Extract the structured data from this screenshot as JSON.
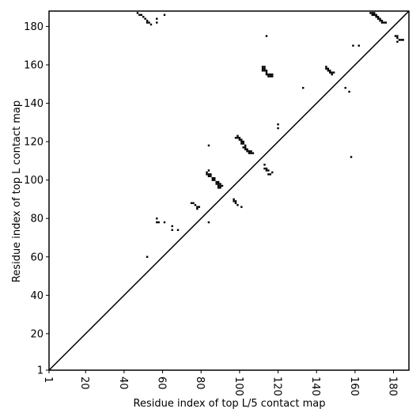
{
  "chart_data": {
    "type": "heatmap",
    "xlabel": "Residue index of top L/5 contact map",
    "ylabel": "Residue index of top L contact map",
    "xlim": [
      1,
      188
    ],
    "ylim": [
      1,
      188
    ],
    "xticks": [
      "1",
      "20",
      "40",
      "60",
      "80",
      "100",
      "120",
      "140",
      "160",
      "180"
    ],
    "yticks": [
      "1",
      "20",
      "40",
      "60",
      "80",
      "100",
      "120",
      "140",
      "160",
      "180"
    ],
    "diagonal": true,
    "colors": {
      "contact": "#000000",
      "background": "#ffffff",
      "frame": "#000000"
    },
    "contacts_upper_left": [
      [
        47,
        187
      ],
      [
        48,
        186
      ],
      [
        49,
        186
      ],
      [
        50,
        185
      ],
      [
        51,
        184
      ],
      [
        52,
        183
      ],
      [
        52,
        182
      ],
      [
        53,
        182
      ],
      [
        54,
        181
      ],
      [
        57,
        184
      ],
      [
        57,
        182
      ],
      [
        61,
        186
      ],
      [
        57,
        80
      ],
      [
        57,
        78
      ],
      [
        58,
        78
      ],
      [
        61,
        78
      ],
      [
        52,
        60
      ],
      [
        65,
        76
      ],
      [
        65,
        74
      ],
      [
        68,
        74
      ],
      [
        84,
        118
      ],
      [
        84,
        78
      ],
      [
        75,
        88
      ],
      [
        76,
        88
      ],
      [
        77,
        87
      ],
      [
        78,
        86
      ],
      [
        78,
        85
      ],
      [
        79,
        86
      ],
      [
        83,
        103
      ],
      [
        83,
        104
      ],
      [
        84,
        105
      ],
      [
        84,
        103
      ],
      [
        84,
        102
      ],
      [
        85,
        103
      ],
      [
        85,
        102
      ],
      [
        86,
        101
      ],
      [
        86,
        100
      ],
      [
        87,
        101
      ],
      [
        87,
        100
      ],
      [
        88,
        99
      ],
      [
        88,
        98
      ],
      [
        89,
        99
      ],
      [
        89,
        98
      ],
      [
        89,
        97
      ],
      [
        89,
        96
      ],
      [
        90,
        98
      ],
      [
        90,
        97
      ],
      [
        90,
        96
      ],
      [
        91,
        97
      ],
      [
        97,
        89
      ],
      [
        97,
        90
      ],
      [
        98,
        89
      ],
      [
        98,
        88
      ],
      [
        99,
        87
      ],
      [
        101,
        86
      ],
      [
        98,
        122
      ],
      [
        99,
        122
      ],
      [
        99,
        123
      ],
      [
        100,
        122
      ],
      [
        100,
        121
      ],
      [
        101,
        121
      ],
      [
        101,
        120
      ],
      [
        101,
        119
      ],
      [
        102,
        120
      ],
      [
        102,
        119
      ],
      [
        102,
        117
      ],
      [
        103,
        118
      ],
      [
        103,
        117
      ],
      [
        103,
        116
      ],
      [
        104,
        116
      ],
      [
        104,
        115
      ],
      [
        105,
        115
      ],
      [
        105,
        114
      ],
      [
        106,
        115
      ],
      [
        106,
        114
      ],
      [
        107,
        114
      ],
      [
        113,
        108
      ],
      [
        113,
        106
      ],
      [
        114,
        106
      ],
      [
        114,
        105
      ],
      [
        115,
        105
      ],
      [
        115,
        103
      ],
      [
        116,
        103
      ],
      [
        117,
        104
      ],
      [
        112,
        159
      ],
      [
        113,
        159
      ],
      [
        112,
        158
      ],
      [
        113,
        158
      ],
      [
        112,
        157
      ],
      [
        113,
        157
      ],
      [
        114,
        157
      ],
      [
        114,
        156
      ],
      [
        114,
        155
      ],
      [
        115,
        155
      ],
      [
        115,
        154
      ],
      [
        116,
        155
      ],
      [
        116,
        154
      ],
      [
        117,
        154
      ],
      [
        117,
        155
      ],
      [
        114,
        175
      ],
      [
        120,
        127
      ],
      [
        120,
        129
      ],
      [
        133,
        148
      ],
      [
        145,
        159
      ],
      [
        145,
        158
      ],
      [
        146,
        158
      ],
      [
        146,
        157
      ],
      [
        147,
        157
      ],
      [
        147,
        156
      ],
      [
        148,
        156
      ],
      [
        148,
        155
      ],
      [
        149,
        156
      ],
      [
        155,
        148
      ],
      [
        157,
        146
      ],
      [
        158,
        112
      ],
      [
        159,
        170
      ],
      [
        162,
        170
      ],
      [
        168,
        187
      ],
      [
        169,
        187
      ],
      [
        170,
        187
      ],
      [
        169,
        186
      ],
      [
        170,
        186
      ],
      [
        171,
        186
      ],
      [
        171,
        185
      ],
      [
        172,
        185
      ],
      [
        172,
        184
      ],
      [
        173,
        184
      ],
      [
        173,
        183
      ],
      [
        174,
        183
      ],
      [
        174,
        182
      ],
      [
        175,
        182
      ],
      [
        176,
        182
      ],
      [
        181,
        175
      ],
      [
        182,
        175
      ],
      [
        182,
        174
      ],
      [
        182,
        172
      ],
      [
        183,
        173
      ],
      [
        184,
        173
      ],
      [
        185,
        173
      ]
    ]
  }
}
